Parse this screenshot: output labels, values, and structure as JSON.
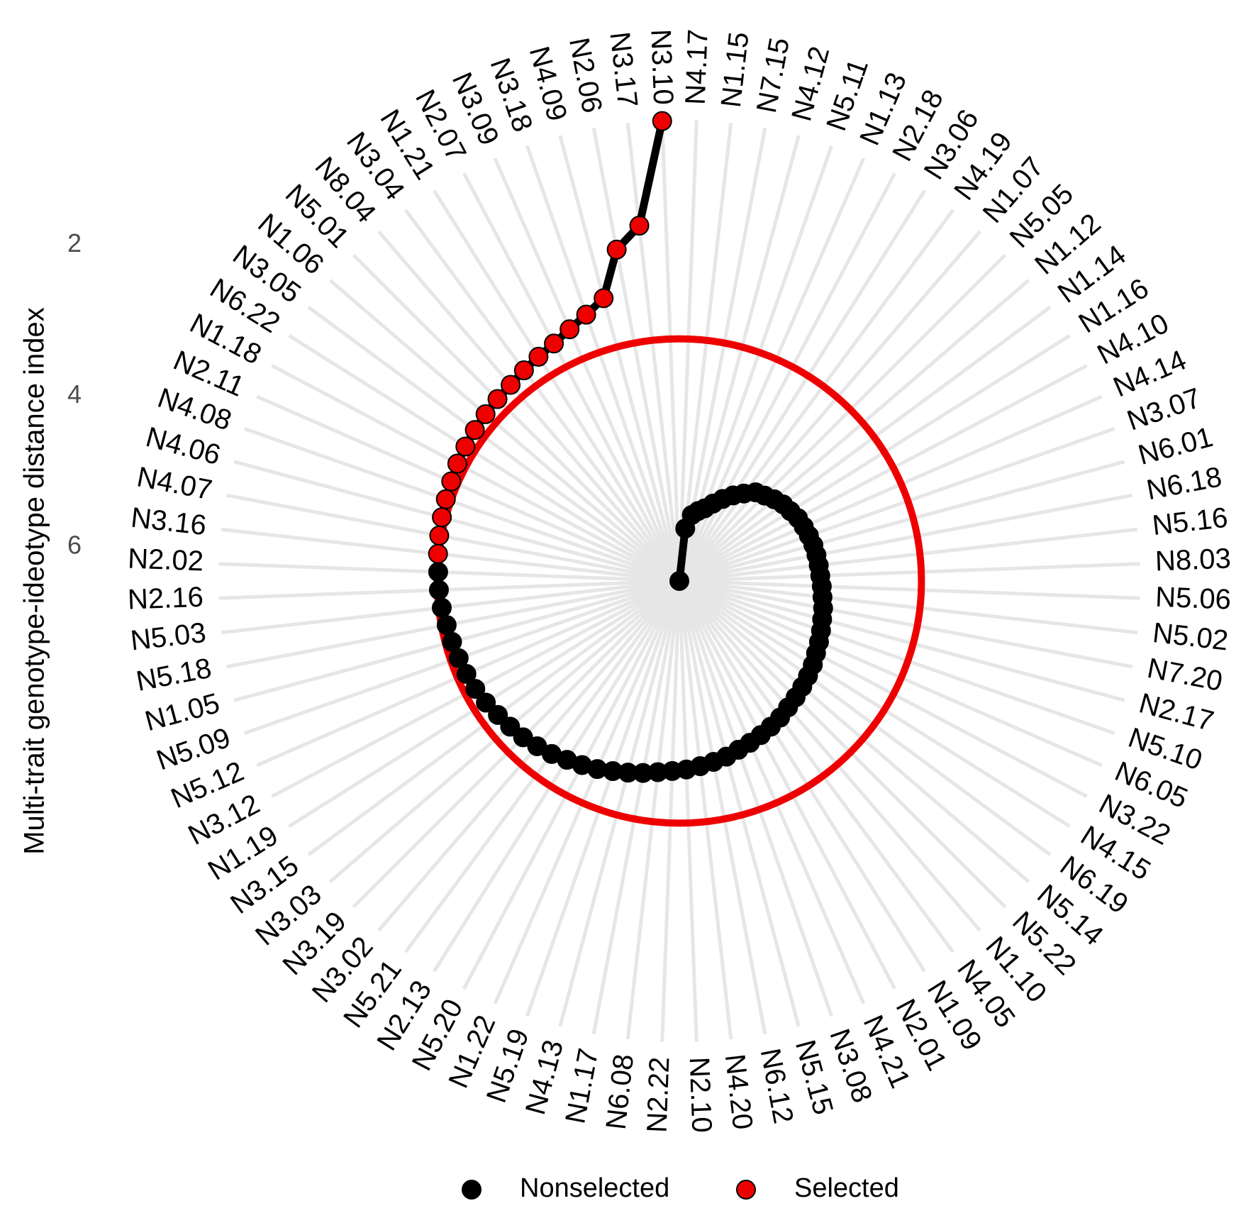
{
  "chart_data": {
    "type": "radar",
    "y_label": "Multi-trait genotype-ideotype distance index",
    "categories": [
      "N4.17",
      "N1.15",
      "N7.15",
      "N4.12",
      "N5.11",
      "N1.13",
      "N2.18",
      "N3.06",
      "N4.19",
      "N1.07",
      "N5.05",
      "N1.12",
      "N1.14",
      "N1.16",
      "N4.10",
      "N4.14",
      "N3.07",
      "N6.01",
      "N6.18",
      "N5.16",
      "N8.03",
      "N5.06",
      "N5.02",
      "N7.20",
      "N2.17",
      "N5.10",
      "N6.05",
      "N3.22",
      "N4.15",
      "N6.19",
      "N5.14",
      "N5.22",
      "N1.10",
      "N4.05",
      "N1.09",
      "N2.01",
      "N4.21",
      "N3.08",
      "N5.15",
      "N6.12",
      "N4.20",
      "N2.10",
      "N2.22",
      "N6.08",
      "N1.17",
      "N4.13",
      "N5.19",
      "N1.22",
      "N5.20",
      "N2.13",
      "N5.21",
      "N3.02",
      "N3.19",
      "N3.03",
      "N3.15",
      "N1.19",
      "N3.12",
      "N5.12",
      "N5.09",
      "N1.05",
      "N5.18",
      "N5.03",
      "N2.16",
      "N2.02",
      "N3.16",
      "N4.07",
      "N4.06",
      "N4.08",
      "N2.11",
      "N1.18",
      "N6.22",
      "N3.05",
      "N1.06",
      "N5.01",
      "N8.04",
      "N3.04",
      "N1.21",
      "N2.07",
      "N3.09",
      "N3.18",
      "N4.09",
      "N2.06",
      "N3.17",
      "N3.10"
    ],
    "series": [
      {
        "name": "Nonselected",
        "color": "#000000",
        "values": [
          6.45,
          5.75,
          5.56,
          5.49,
          5.43,
          5.33,
          5.22,
          5.11,
          5.01,
          4.9,
          4.85,
          4.79,
          4.74,
          4.71,
          4.67,
          4.65,
          4.63,
          4.61,
          4.6,
          4.59,
          4.58,
          4.56,
          4.54,
          4.51,
          4.49,
          4.46,
          4.43,
          4.4,
          4.36,
          4.33,
          4.3,
          4.27,
          4.24,
          4.2,
          4.17,
          4.14,
          4.11,
          4.08,
          4.04,
          4.01,
          3.98,
          3.95,
          3.93,
          3.9,
          3.86,
          3.82,
          3.78,
          3.73,
          3.69,
          3.65,
          3.6,
          3.56,
          3.52,
          3.49,
          3.46,
          3.42,
          3.39,
          3.37,
          3.35,
          3.33,
          3.31,
          3.28,
          3.26,
          3.25,
          null,
          null,
          null,
          null,
          null,
          null,
          null,
          null,
          null,
          null,
          null,
          null,
          null,
          null,
          null,
          null,
          null,
          null,
          null,
          null
        ]
      },
      {
        "name": "Selected",
        "color": "#ee0000",
        "values": [
          null,
          null,
          null,
          null,
          null,
          null,
          null,
          null,
          null,
          null,
          null,
          null,
          null,
          null,
          null,
          null,
          null,
          null,
          null,
          null,
          null,
          null,
          null,
          null,
          null,
          null,
          null,
          null,
          null,
          null,
          null,
          null,
          null,
          null,
          null,
          null,
          null,
          null,
          null,
          null,
          null,
          null,
          null,
          null,
          null,
          null,
          null,
          null,
          null,
          null,
          null,
          null,
          null,
          null,
          null,
          null,
          null,
          null,
          null,
          null,
          null,
          null,
          null,
          null,
          3.23,
          3.21,
          3.19,
          3.17,
          3.15,
          3.12,
          3.1,
          3.08,
          3.06,
          3.04,
          3.02,
          2.98,
          2.94,
          2.89,
          2.81,
          2.71,
          2.57,
          1.98,
          1.71,
          0.35
        ]
      }
    ],
    "threshold": 3.24,
    "ylim": [
      6.45,
      0
    ],
    "yticks": [
      2,
      4,
      6
    ],
    "legend_position": "bottom"
  }
}
